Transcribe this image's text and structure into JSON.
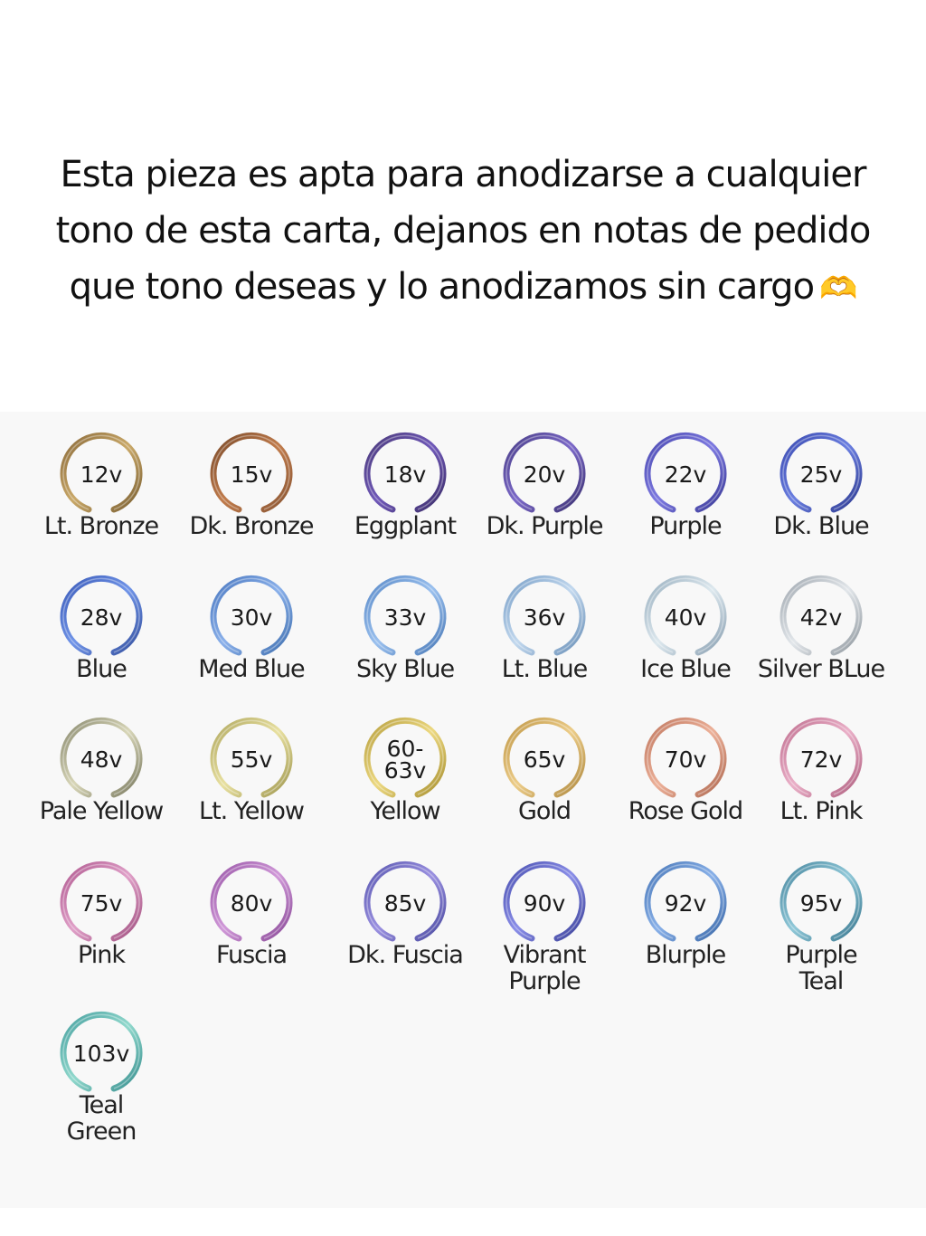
{
  "header": {
    "line1": "Esta pieza es apta para anodizarse a cualquier",
    "line2": "tono de esta carta, dejanos en notas de pedido",
    "line3": "que tono deseas y lo anodizamos sin cargo",
    "icon": "heart-hands-icon"
  },
  "swatches": [
    {
      "volt": "12v",
      "name": "Lt. Bronze",
      "colors": [
        "#8a6a3a",
        "#c9a868",
        "#7a5f32"
      ]
    },
    {
      "volt": "15v",
      "name": "Dk. Bronze",
      "colors": [
        "#7a4a2a",
        "#c07b4b",
        "#8a5634"
      ]
    },
    {
      "volt": "18v",
      "name": "Eggplant",
      "colors": [
        "#4a3a7a",
        "#6f58b8",
        "#3b2d68"
      ]
    },
    {
      "volt": "20v",
      "name": "Dk. Purple",
      "colors": [
        "#4a3f88",
        "#7b68c8",
        "#3a3070"
      ]
    },
    {
      "volt": "22v",
      "name": "Purple",
      "colors": [
        "#4b4ab0",
        "#7c78e0",
        "#3a3a96"
      ]
    },
    {
      "volt": "25v",
      "name": "Dk. Blue",
      "colors": [
        "#3a4ab0",
        "#6a7ee0",
        "#2d3a90"
      ]
    },
    {
      "volt": "28v",
      "name": "Blue",
      "colors": [
        "#3a5ab8",
        "#7094e8",
        "#34509e"
      ]
    },
    {
      "volt": "30v",
      "name": "Med Blue",
      "colors": [
        "#4a78c0",
        "#8ab0ea",
        "#4070b0"
      ]
    },
    {
      "volt": "33v",
      "name": "Sky Blue",
      "colors": [
        "#5a8ac8",
        "#9ac0ee",
        "#4a7ab8"
      ]
    },
    {
      "volt": "36v",
      "name": "Lt. Blue",
      "colors": [
        "#7aa0c8",
        "#c2d8ee",
        "#6a90b8"
      ]
    },
    {
      "volt": "40v",
      "name": "Ice Blue",
      "colors": [
        "#9ab0c0",
        "#dde8ee",
        "#8aa0b2"
      ]
    },
    {
      "volt": "42v",
      "name": "Silver BLue",
      "colors": [
        "#a0a8b0",
        "#e2e6ea",
        "#90989f"
      ]
    },
    {
      "volt": "48v",
      "name": "Pale Yellow",
      "colors": [
        "#8a8a70",
        "#d8d6b8",
        "#7a7a60"
      ]
    },
    {
      "volt": "55v",
      "name": "Lt. Yellow",
      "colors": [
        "#b0a860",
        "#e8e0a0",
        "#a09850"
      ]
    },
    {
      "volt": "60-\n63v",
      "name": "Yellow",
      "colors": [
        "#b8a040",
        "#ecd880",
        "#a89030"
      ]
    },
    {
      "volt": "65v",
      "name": "Gold",
      "colors": [
        "#c09848",
        "#eccc88",
        "#b08a40"
      ]
    },
    {
      "volt": "70v",
      "name": "Rose Gold",
      "colors": [
        "#c07860",
        "#ecb098",
        "#b06a52"
      ]
    },
    {
      "volt": "72v",
      "name": "Lt. Pink",
      "colors": [
        "#c07090",
        "#eab0c8",
        "#b06080"
      ]
    },
    {
      "volt": "75v",
      "name": "Pink",
      "colors": [
        "#b05a90",
        "#e0a0c8",
        "#a05080"
      ]
    },
    {
      "volt": "80v",
      "name": "Fuscia",
      "colors": [
        "#9a58a8",
        "#d098d8",
        "#8a4a98"
      ]
    },
    {
      "volt": "85v",
      "name": "Dk. Fuscia",
      "colors": [
        "#5a58b0",
        "#9a90e0",
        "#4a4aa0"
      ]
    },
    {
      "volt": "90v",
      "name": "Vibrant\nPurple",
      "colors": [
        "#4a50b0",
        "#8a8ee8",
        "#3a4098"
      ]
    },
    {
      "volt": "92v",
      "name": "Blurple",
      "colors": [
        "#4a78b8",
        "#88b0e8",
        "#3a68a8"
      ]
    },
    {
      "volt": "95v",
      "name": "Purple\nTeal",
      "colors": [
        "#4a88a0",
        "#90c8d8",
        "#3a7890"
      ]
    },
    {
      "volt": "103v",
      "name": "Teal\nGreen",
      "colors": [
        "#48a0a0",
        "#90d8cc",
        "#3a9090"
      ]
    }
  ]
}
